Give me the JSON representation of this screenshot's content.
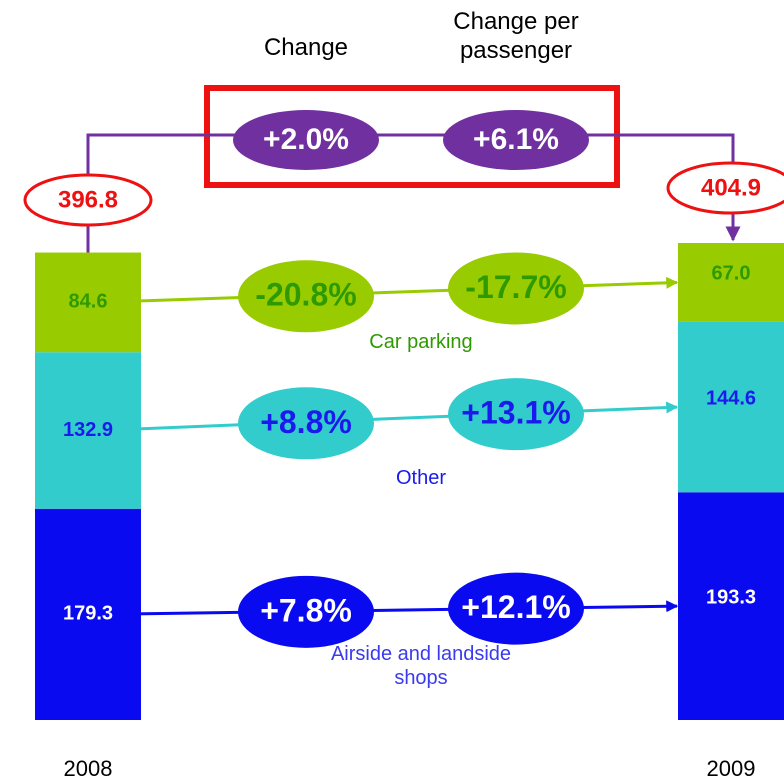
{
  "chart_data": {
    "type": "bar",
    "stacked": true,
    "categories": [
      "2008",
      "2009"
    ],
    "change_headings": [
      "Change",
      "Change per passenger"
    ],
    "totals": {
      "values": [
        396.8,
        404.9
      ]
    },
    "total_change": {
      "values": [
        2.0,
        6.1
      ],
      "value_labels": [
        "+2.0%",
        "+6.1%"
      ]
    },
    "series": [
      {
        "name": "Airside and landside shops",
        "color": "#0a0af0",
        "values": [
          179.3,
          193.3
        ],
        "change": {
          "values": [
            7.8,
            12.1
          ],
          "value_labels": [
            "+7.8%",
            "+12.1%"
          ]
        }
      },
      {
        "name": "Other",
        "color": "#33cccc",
        "values": [
          132.9,
          144.6
        ],
        "change": {
          "values": [
            8.8,
            13.1
          ],
          "value_labels": [
            "+8.8%",
            "+13.1%"
          ]
        }
      },
      {
        "name": "Car parking",
        "color": "#99cc00",
        "values": [
          84.6,
          67.0
        ],
        "value_labels": [
          "84.6",
          "67.0"
        ],
        "change": {
          "values": [
            -20.8,
            -17.7
          ],
          "value_labels": [
            "-20.8%",
            "-17.7%"
          ]
        }
      }
    ]
  }
}
